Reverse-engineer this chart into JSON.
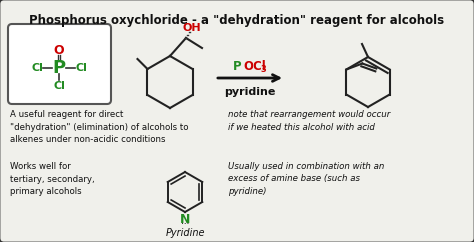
{
  "title": "Phosphorus oxychloride - a \"dehydration\" reagent for alcohols",
  "bg_color": "#f0f0eb",
  "border_color": "#333333",
  "text_color": "#111111",
  "green_color": "#228B22",
  "red_color": "#cc0000",
  "blue_color": "#0000cc",
  "pocl_box_color": "#ffffff",
  "note_text": "note that rearrangement would occur\nif we heated this alcohol with acid",
  "desc_text": "A useful reagent for direct\n\"dehydration\" (elimination) of alcohols to\nalkenes under non-acidic conditions",
  "works_text": "Works well for\ntertiary, secondary,\nprimary alcohols",
  "pyridine_label": "Pyridine",
  "combo_text": "Usually used in combination with an\nexcess of amine base (such as\npyridine)",
  "solvent_label": "pyridine"
}
